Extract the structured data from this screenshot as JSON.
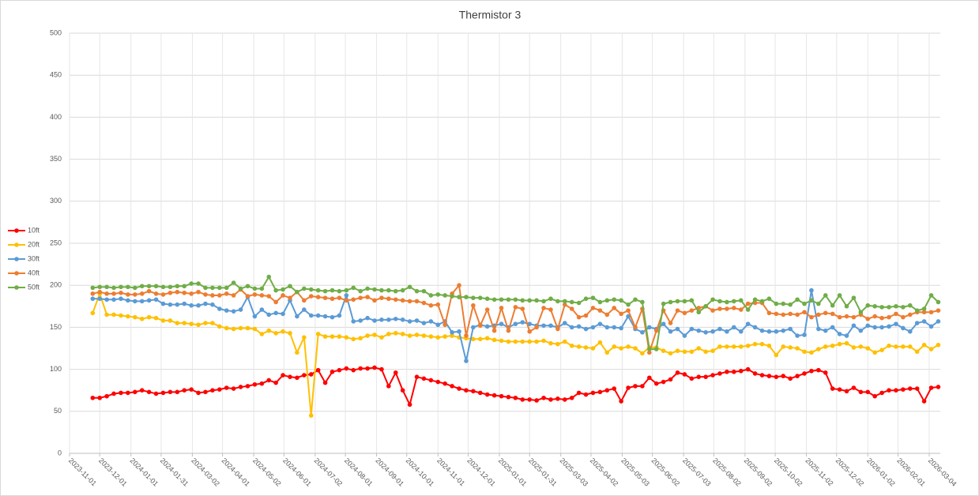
{
  "chart_data": {
    "type": "line",
    "title": "Thermistor 3",
    "x": [
      "2023-11-24",
      "2023-12-01",
      "2023-12-08",
      "2023-12-15",
      "2023-12-22",
      "2023-12-29",
      "2024-01-05",
      "2024-01-12",
      "2024-01-19",
      "2024-01-26",
      "2024-02-02",
      "2024-02-09",
      "2024-02-16",
      "2024-02-23",
      "2024-03-01",
      "2024-03-08",
      "2024-03-15",
      "2024-03-22",
      "2024-03-29",
      "2024-04-05",
      "2024-04-12",
      "2024-04-19",
      "2024-04-26",
      "2024-05-03",
      "2024-05-10",
      "2024-05-17",
      "2024-05-24",
      "2024-05-31",
      "2024-06-07",
      "2024-06-14",
      "2024-06-21",
      "2024-06-28",
      "2024-07-05",
      "2024-07-12",
      "2024-07-19",
      "2024-07-26",
      "2024-08-02",
      "2024-08-09",
      "2024-08-16",
      "2024-08-23",
      "2024-08-30",
      "2024-09-06",
      "2024-09-13",
      "2024-09-20",
      "2024-09-27",
      "2024-10-04",
      "2024-10-11",
      "2024-10-18",
      "2024-10-25",
      "2024-11-01",
      "2024-11-08",
      "2024-11-15",
      "2024-11-22",
      "2024-11-29",
      "2024-12-06",
      "2024-12-13",
      "2024-12-20",
      "2024-12-27",
      "2025-01-03",
      "2025-01-10",
      "2025-01-17",
      "2025-01-24",
      "2025-01-31",
      "2025-02-07",
      "2025-02-14",
      "2025-02-21",
      "2025-02-28",
      "2025-03-07",
      "2025-03-14",
      "2025-03-21",
      "2025-03-28",
      "2025-04-04",
      "2025-04-11",
      "2025-04-18",
      "2025-04-25",
      "2025-05-02",
      "2025-05-09",
      "2025-05-16",
      "2025-05-23",
      "2025-05-30",
      "2025-06-06",
      "2025-06-13",
      "2025-06-20",
      "2025-06-27",
      "2025-07-04",
      "2025-07-11",
      "2025-07-18",
      "2025-07-25",
      "2025-08-01",
      "2025-08-08",
      "2025-08-15",
      "2025-08-22",
      "2025-08-29",
      "2025-09-05",
      "2025-09-12",
      "2025-09-19",
      "2025-09-26",
      "2025-10-03",
      "2025-10-10",
      "2025-10-17",
      "2025-10-24",
      "2025-10-31",
      "2025-11-07",
      "2025-11-14",
      "2025-11-21",
      "2025-11-28",
      "2025-12-05",
      "2025-12-12",
      "2025-12-19",
      "2025-12-26",
      "2026-01-02",
      "2026-01-09",
      "2026-01-16",
      "2026-01-23",
      "2026-01-30",
      "2026-02-06",
      "2026-02-13",
      "2026-02-20",
      "2026-02-27",
      "2026-03-06",
      "2026-03-13"
    ],
    "series": [
      {
        "name": "10ft",
        "color": "#ff0000",
        "values": [
          66,
          66,
          68,
          71,
          72,
          72,
          73,
          75,
          73,
          71,
          72,
          73,
          73,
          75,
          76,
          72,
          73,
          75,
          76,
          78,
          77,
          79,
          80,
          82,
          83,
          87,
          84,
          93,
          91,
          90,
          93,
          94,
          99,
          84,
          97,
          99,
          101,
          99,
          101,
          101,
          102,
          100,
          80,
          96,
          75,
          58,
          91,
          89,
          87,
          85,
          83,
          80,
          77,
          75,
          74,
          72,
          70,
          69,
          68,
          67,
          66,
          64,
          64,
          63,
          66,
          64,
          65,
          64,
          66,
          72,
          70,
          72,
          73,
          75,
          77,
          62,
          78,
          80,
          80,
          90,
          83,
          85,
          88,
          96,
          94,
          89,
          91,
          91,
          93,
          95,
          97,
          97,
          98,
          100,
          95,
          93,
          92,
          91,
          92,
          89,
          92,
          95,
          98,
          99,
          96,
          77,
          76,
          74,
          78,
          73,
          73,
          68,
          72,
          75,
          75,
          76,
          77,
          77,
          62,
          78,
          79
        ]
      },
      {
        "name": "20ft",
        "color": "#ffc000",
        "values": [
          167,
          190,
          165,
          165,
          164,
          163,
          162,
          160,
          162,
          161,
          158,
          158,
          155,
          155,
          154,
          153,
          155,
          155,
          151,
          149,
          148,
          149,
          149,
          148,
          142,
          146,
          143,
          145,
          143,
          120,
          138,
          45,
          142,
          139,
          139,
          139,
          138,
          136,
          137,
          140,
          141,
          138,
          142,
          143,
          142,
          140,
          141,
          140,
          139,
          138,
          139,
          140,
          138,
          137,
          136,
          136,
          137,
          135,
          134,
          133,
          133,
          133,
          133,
          133,
          134,
          131,
          130,
          133,
          128,
          127,
          126,
          125,
          132,
          120,
          127,
          125,
          127,
          125,
          119,
          126,
          126,
          122,
          119,
          122,
          121,
          121,
          125,
          121,
          122,
          127,
          127,
          127,
          127,
          128,
          130,
          130,
          128,
          117,
          127,
          126,
          125,
          121,
          120,
          124,
          127,
          128,
          130,
          131,
          126,
          127,
          125,
          120,
          123,
          128,
          127,
          127,
          127,
          121,
          129,
          124,
          129
        ]
      },
      {
        "name": "30ft",
        "color": "#5b9bd5",
        "values": [
          184,
          184,
          183,
          183,
          184,
          182,
          181,
          181,
          182,
          183,
          178,
          177,
          177,
          178,
          176,
          176,
          178,
          177,
          172,
          170,
          169,
          171,
          186,
          163,
          171,
          165,
          167,
          166,
          182,
          163,
          171,
          164,
          164,
          163,
          162,
          164,
          188,
          157,
          158,
          161,
          158,
          159,
          159,
          160,
          159,
          157,
          158,
          155,
          157,
          153,
          157,
          144,
          145,
          110,
          150,
          153,
          151,
          152,
          154,
          150,
          154,
          156,
          154,
          152,
          152,
          152,
          150,
          155,
          150,
          151,
          148,
          150,
          154,
          150,
          150,
          149,
          163,
          148,
          144,
          150,
          148,
          154,
          145,
          148,
          140,
          148,
          146,
          144,
          145,
          148,
          145,
          150,
          145,
          154,
          150,
          146,
          145,
          145,
          146,
          148,
          140,
          141,
          194,
          148,
          146,
          150,
          142,
          140,
          152,
          146,
          152,
          150,
          150,
          151,
          154,
          149,
          145,
          155,
          157,
          151,
          157
        ]
      },
      {
        "name": "40ft",
        "color": "#ed7d31",
        "values": [
          190,
          192,
          190,
          190,
          191,
          189,
          189,
          190,
          193,
          190,
          189,
          191,
          192,
          191,
          190,
          192,
          189,
          188,
          188,
          190,
          188,
          195,
          187,
          189,
          188,
          187,
          180,
          188,
          185,
          192,
          182,
          187,
          186,
          185,
          184,
          185,
          182,
          183,
          185,
          186,
          182,
          185,
          184,
          183,
          182,
          181,
          181,
          179,
          176,
          177,
          153,
          190,
          200,
          140,
          176,
          152,
          171,
          146,
          173,
          146,
          174,
          172,
          145,
          150,
          173,
          171,
          148,
          177,
          172,
          162,
          164,
          173,
          170,
          165,
          173,
          166,
          170,
          150,
          172,
          120,
          146,
          170,
          155,
          170,
          167,
          170,
          173,
          175,
          170,
          172,
          172,
          173,
          171,
          178,
          179,
          179,
          167,
          166,
          165,
          166,
          165,
          168,
          162,
          165,
          167,
          166,
          162,
          163,
          162,
          165,
          160,
          163,
          161,
          162,
          166,
          162,
          165,
          168,
          168,
          168,
          170
        ]
      },
      {
        "name": "50ft",
        "color": "#70ad47",
        "values": [
          197,
          198,
          198,
          197,
          198,
          198,
          197,
          199,
          199,
          199,
          198,
          198,
          199,
          199,
          202,
          202,
          197,
          197,
          197,
          197,
          203,
          196,
          199,
          196,
          196,
          210,
          194,
          195,
          199,
          192,
          196,
          195,
          194,
          193,
          194,
          193,
          194,
          197,
          193,
          196,
          195,
          194,
          194,
          193,
          194,
          198,
          193,
          193,
          188,
          189,
          188,
          187,
          186,
          186,
          185,
          185,
          184,
          183,
          183,
          183,
          183,
          182,
          182,
          182,
          181,
          184,
          181,
          181,
          180,
          179,
          184,
          185,
          180,
          182,
          183,
          182,
          177,
          183,
          180,
          124,
          124,
          178,
          180,
          181,
          181,
          182,
          168,
          175,
          183,
          181,
          180,
          181,
          182,
          171,
          183,
          181,
          184,
          178,
          178,
          177,
          183,
          178,
          182,
          178,
          188,
          176,
          188,
          175,
          185,
          168,
          176,
          175,
          174,
          174,
          175,
          174,
          176,
          170,
          172,
          188,
          180
        ]
      }
    ],
    "xlim": [
      "2023-11-01",
      "2026-03-15"
    ],
    "xticks": [
      "2023-11-01",
      "2023-12-01",
      "2024-01-01",
      "2024-01-31",
      "2024-03-02",
      "2024-04-01",
      "2024-05-02",
      "2024-06-01",
      "2024-07-02",
      "2024-08-01",
      "2024-09-01",
      "2024-10-01",
      "2024-11-01",
      "2024-12-01",
      "2025-01-01",
      "2025-01-31",
      "2025-03-03",
      "2025-04-02",
      "2025-05-03",
      "2025-06-02",
      "2025-07-03",
      "2025-08-02",
      "2025-09-02",
      "2025-10-02",
      "2025-11-02",
      "2025-12-02",
      "2026-01-02",
      "2026-02-01",
      "2026-03-04"
    ],
    "ylim": [
      0,
      500
    ],
    "yticks": [
      0,
      50,
      100,
      150,
      200,
      250,
      300,
      350,
      400,
      450,
      500
    ],
    "grid": true,
    "legend": "left"
  }
}
